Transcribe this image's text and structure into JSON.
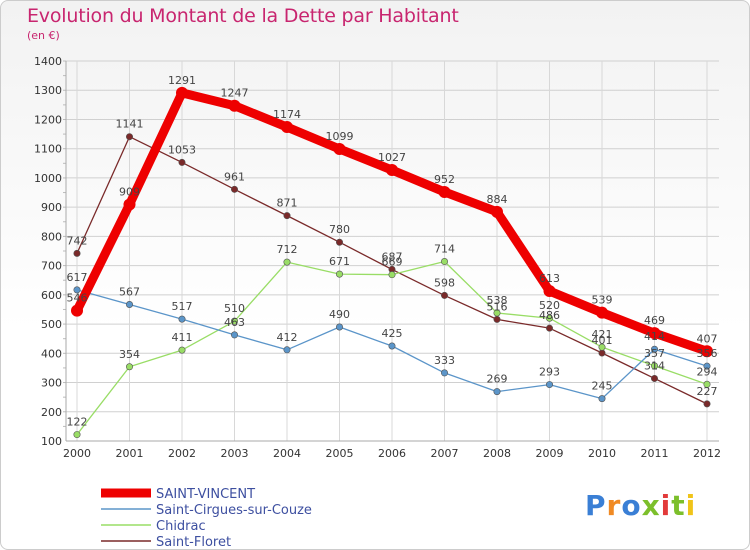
{
  "header": {
    "title": "Evolution du Montant de la Dette par Habitant",
    "subtitle": "(en €)"
  },
  "logo": {
    "text": "Proxiti",
    "colors": [
      "#3a7fd5",
      "#f08a24",
      "#3a7fd5",
      "#7cbf2b",
      "#e23b3b",
      "#7cbf2b",
      "#f0c419"
    ]
  },
  "chart_data": {
    "type": "line",
    "title": "Evolution du Montant de la Dette par Habitant",
    "subtitle": "(en €)",
    "xlabel": "",
    "ylabel": "",
    "x": [
      "2000",
      "2001",
      "2002",
      "2003",
      "2004",
      "2005",
      "2006",
      "2007",
      "2008",
      "2009",
      "2010",
      "2011",
      "2012"
    ],
    "ylim": [
      100,
      1400
    ],
    "yticks": [
      100,
      200,
      300,
      400,
      500,
      600,
      700,
      800,
      900,
      1000,
      1100,
      1200,
      1300,
      1400
    ],
    "grid": true,
    "legend_position": "bottom",
    "series": [
      {
        "name": "SAINT-VINCENT",
        "color": "#ee0000",
        "values": [
          546,
          909,
          1291,
          1247,
          1174,
          1099,
          1027,
          952,
          884,
          613,
          539,
          469,
          407
        ]
      },
      {
        "name": "Saint-Cirgues-sur-Couze",
        "color": "#5b95c9",
        "values": [
          617,
          567,
          517,
          463,
          412,
          490,
          425,
          333,
          269,
          293,
          245,
          414,
          356
        ]
      },
      {
        "name": "Chidrac",
        "color": "#99dd66",
        "values": [
          122,
          354,
          411,
          510,
          712,
          671,
          669,
          714,
          538,
          520,
          421,
          357,
          294
        ]
      },
      {
        "name": "Saint-Floret",
        "color": "#7a2a2a",
        "values": [
          742,
          1141,
          1053,
          961,
          871,
          780,
          687,
          598,
          516,
          486,
          401,
          314,
          227
        ]
      }
    ]
  }
}
